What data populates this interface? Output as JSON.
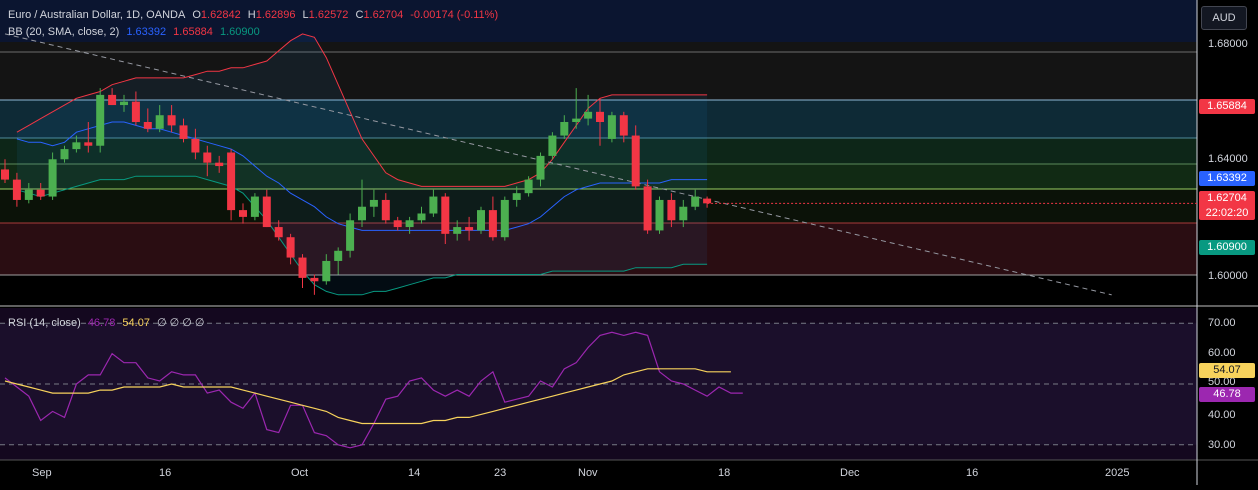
{
  "symbol_legend": {
    "title": "Euro / Australian Dollar, 1D, OANDA",
    "open_label": "O",
    "open": "1.62842",
    "high_label": "H",
    "high": "1.62896",
    "low_label": "L",
    "low": "1.62572",
    "close_label": "C",
    "close": "1.62704",
    "change": "-0.00174 (-0.11%)"
  },
  "bb_legend": {
    "label": "BB (20, SMA, close, 2)",
    "basis": "1.63392",
    "upper": "1.65884",
    "lower": "1.60900"
  },
  "rsi_legend": {
    "label": "RSI (14, close)",
    "rsi": "46.78",
    "ma": "54.07",
    "extras": "∅ ∅ ∅ ∅"
  },
  "currency_button": "AUD",
  "price_axis_labels": [
    "1.68000",
    "1.64000",
    "1.60000"
  ],
  "price_badges": {
    "upper": "1.65884",
    "basis": "1.63392",
    "close": "1.62704",
    "countdown": "22:02:20",
    "lower": "1.60900"
  },
  "rsi_axis_labels": [
    "70.00",
    "60.00",
    "50.00",
    "40.00",
    "30.00"
  ],
  "rsi_badges": {
    "ma": "54.07",
    "rsi": "46.78"
  },
  "time_axis_labels": [
    "Sep",
    "16",
    "Oct",
    "14",
    "23",
    "Nov",
    "18",
    "Dec",
    "16",
    "2025"
  ],
  "colors": {
    "up": "#4caf50",
    "down": "#f23645",
    "bb_basis": "#2962ff",
    "bb_upper": "#f23645",
    "bb_lower": "#089981",
    "rsi": "#9c27b0",
    "rsi_ma": "#f7d25c"
  },
  "chart_data": {
    "type": "candlestick",
    "price_range": [
      1.597,
      1.687
    ],
    "candles": [
      {
        "o": 1.637,
        "h": 1.64,
        "l": 1.633,
        "c": 1.634
      },
      {
        "o": 1.634,
        "h": 1.636,
        "l": 1.626,
        "c": 1.628
      },
      {
        "o": 1.628,
        "h": 1.633,
        "l": 1.627,
        "c": 1.631
      },
      {
        "o": 1.631,
        "h": 1.633,
        "l": 1.628,
        "c": 1.629
      },
      {
        "o": 1.629,
        "h": 1.642,
        "l": 1.628,
        "c": 1.64
      },
      {
        "o": 1.64,
        "h": 1.644,
        "l": 1.639,
        "c": 1.643
      },
      {
        "o": 1.643,
        "h": 1.647,
        "l": 1.642,
        "c": 1.645
      },
      {
        "o": 1.645,
        "h": 1.651,
        "l": 1.642,
        "c": 1.644
      },
      {
        "o": 1.644,
        "h": 1.661,
        "l": 1.642,
        "c": 1.659
      },
      {
        "o": 1.659,
        "h": 1.661,
        "l": 1.656,
        "c": 1.656
      },
      {
        "o": 1.656,
        "h": 1.659,
        "l": 1.654,
        "c": 1.657
      },
      {
        "o": 1.657,
        "h": 1.66,
        "l": 1.65,
        "c": 1.651
      },
      {
        "o": 1.651,
        "h": 1.655,
        "l": 1.648,
        "c": 1.649
      },
      {
        "o": 1.649,
        "h": 1.656,
        "l": 1.648,
        "c": 1.653
      },
      {
        "o": 1.653,
        "h": 1.656,
        "l": 1.648,
        "c": 1.65
      },
      {
        "o": 1.65,
        "h": 1.652,
        "l": 1.645,
        "c": 1.646
      },
      {
        "o": 1.646,
        "h": 1.649,
        "l": 1.64,
        "c": 1.642
      },
      {
        "o": 1.642,
        "h": 1.644,
        "l": 1.635,
        "c": 1.639
      },
      {
        "o": 1.639,
        "h": 1.641,
        "l": 1.636,
        "c": 1.638
      },
      {
        "o": 1.642,
        "h": 1.643,
        "l": 1.622,
        "c": 1.625
      },
      {
        "o": 1.625,
        "h": 1.627,
        "l": 1.621,
        "c": 1.623
      },
      {
        "o": 1.623,
        "h": 1.63,
        "l": 1.622,
        "c": 1.629
      },
      {
        "o": 1.629,
        "h": 1.631,
        "l": 1.62,
        "c": 1.62
      },
      {
        "o": 1.62,
        "h": 1.622,
        "l": 1.616,
        "c": 1.617
      },
      {
        "o": 1.617,
        "h": 1.618,
        "l": 1.609,
        "c": 1.611
      },
      {
        "o": 1.611,
        "h": 1.612,
        "l": 1.602,
        "c": 1.605
      },
      {
        "o": 1.605,
        "h": 1.606,
        "l": 1.6,
        "c": 1.604
      },
      {
        "o": 1.604,
        "h": 1.612,
        "l": 1.603,
        "c": 1.61
      },
      {
        "o": 1.61,
        "h": 1.614,
        "l": 1.606,
        "c": 1.613
      },
      {
        "o": 1.613,
        "h": 1.624,
        "l": 1.611,
        "c": 1.622
      },
      {
        "o": 1.622,
        "h": 1.634,
        "l": 1.62,
        "c": 1.626
      },
      {
        "o": 1.626,
        "h": 1.631,
        "l": 1.623,
        "c": 1.628
      },
      {
        "o": 1.628,
        "h": 1.63,
        "l": 1.621,
        "c": 1.622
      },
      {
        "o": 1.622,
        "h": 1.623,
        "l": 1.619,
        "c": 1.62
      },
      {
        "o": 1.62,
        "h": 1.623,
        "l": 1.618,
        "c": 1.622
      },
      {
        "o": 1.622,
        "h": 1.626,
        "l": 1.621,
        "c": 1.624
      },
      {
        "o": 1.624,
        "h": 1.631,
        "l": 1.623,
        "c": 1.629
      },
      {
        "o": 1.629,
        "h": 1.63,
        "l": 1.615,
        "c": 1.618
      },
      {
        "o": 1.618,
        "h": 1.622,
        "l": 1.616,
        "c": 1.62
      },
      {
        "o": 1.62,
        "h": 1.623,
        "l": 1.616,
        "c": 1.619
      },
      {
        "o": 1.619,
        "h": 1.626,
        "l": 1.618,
        "c": 1.625
      },
      {
        "o": 1.625,
        "h": 1.629,
        "l": 1.616,
        "c": 1.617
      },
      {
        "o": 1.617,
        "h": 1.629,
        "l": 1.616,
        "c": 1.628
      },
      {
        "o": 1.628,
        "h": 1.632,
        "l": 1.626,
        "c": 1.63
      },
      {
        "o": 1.63,
        "h": 1.635,
        "l": 1.629,
        "c": 1.634
      },
      {
        "o": 1.634,
        "h": 1.642,
        "l": 1.632,
        "c": 1.641
      },
      {
        "o": 1.641,
        "h": 1.648,
        "l": 1.64,
        "c": 1.647
      },
      {
        "o": 1.647,
        "h": 1.653,
        "l": 1.646,
        "c": 1.651
      },
      {
        "o": 1.651,
        "h": 1.661,
        "l": 1.649,
        "c": 1.652
      },
      {
        "o": 1.652,
        "h": 1.659,
        "l": 1.65,
        "c": 1.654
      },
      {
        "o": 1.654,
        "h": 1.658,
        "l": 1.644,
        "c": 1.651
      },
      {
        "o": 1.646,
        "h": 1.654,
        "l": 1.645,
        "c": 1.653
      },
      {
        "o": 1.653,
        "h": 1.654,
        "l": 1.645,
        "c": 1.647
      },
      {
        "o": 1.647,
        "h": 1.65,
        "l": 1.631,
        "c": 1.632
      },
      {
        "o": 1.632,
        "h": 1.634,
        "l": 1.618,
        "c": 1.619
      },
      {
        "o": 1.619,
        "h": 1.629,
        "l": 1.618,
        "c": 1.628
      },
      {
        "o": 1.628,
        "h": 1.63,
        "l": 1.62,
        "c": 1.622
      },
      {
        "o": 1.622,
        "h": 1.628,
        "l": 1.62,
        "c": 1.626
      },
      {
        "o": 1.626,
        "h": 1.631,
        "l": 1.625,
        "c": 1.629
      },
      {
        "o": 1.6284,
        "h": 1.629,
        "l": 1.6257,
        "c": 1.627
      }
    ],
    "bollinger": {
      "upper": [
        1.648,
        1.65,
        1.652,
        1.654,
        1.656,
        1.658,
        1.659,
        1.66,
        1.662,
        1.663,
        1.664,
        1.664,
        1.664,
        1.664,
        1.664,
        1.665,
        1.666,
        1.666,
        1.667,
        1.667,
        1.668,
        1.669,
        1.672,
        1.675,
        1.677,
        1.676,
        1.67,
        1.662,
        1.654,
        1.646,
        1.641,
        1.636,
        1.634,
        1.633,
        1.632,
        1.632,
        1.632,
        1.632,
        1.632,
        1.632,
        1.632,
        1.632,
        1.633,
        1.634,
        1.636,
        1.64,
        1.645,
        1.65,
        1.655,
        1.658,
        1.659,
        1.659,
        1.659,
        1.659,
        1.659,
        1.659,
        1.659,
        1.659,
        1.659
      ],
      "basis": [
        1.646,
        1.645,
        1.645,
        1.644,
        1.645,
        1.648,
        1.649,
        1.65,
        1.651,
        1.651,
        1.65,
        1.649,
        1.649,
        1.648,
        1.647,
        1.646,
        1.645,
        1.644,
        1.643,
        1.641,
        1.638,
        1.635,
        1.633,
        1.63,
        1.628,
        1.626,
        1.623,
        1.621,
        1.62,
        1.619,
        1.619,
        1.619,
        1.619,
        1.619,
        1.619,
        1.619,
        1.619,
        1.619,
        1.619,
        1.619,
        1.619,
        1.619,
        1.62,
        1.621,
        1.623,
        1.626,
        1.629,
        1.631,
        1.632,
        1.633,
        1.633,
        1.633,
        1.633,
        1.633,
        1.633,
        1.634,
        1.634,
        1.634,
        1.634
      ],
      "lower": [
        1.631,
        1.63,
        1.629,
        1.63,
        1.631,
        1.632,
        1.633,
        1.634,
        1.634,
        1.634,
        1.635,
        1.635,
        1.635,
        1.635,
        1.635,
        1.635,
        1.634,
        1.633,
        1.632,
        1.63,
        1.626,
        1.622,
        1.617,
        1.612,
        1.607,
        1.603,
        1.601,
        1.6,
        1.6,
        1.6,
        1.601,
        1.601,
        1.602,
        1.603,
        1.604,
        1.605,
        1.605,
        1.606,
        1.606,
        1.606,
        1.606,
        1.606,
        1.606,
        1.606,
        1.606,
        1.607,
        1.607,
        1.607,
        1.607,
        1.607,
        1.607,
        1.607,
        1.608,
        1.608,
        1.608,
        1.608,
        1.609,
        1.609,
        1.609
      ]
    },
    "bb_first_index": 1,
    "trendline": {
      "start": [
        0,
        1.677
      ],
      "end": [
        93,
        1.6
      ]
    },
    "rsi_range": [
      25,
      75
    ],
    "rsi": [
      52,
      49,
      46,
      38,
      41,
      39,
      50,
      53,
      53,
      60,
      57,
      57,
      52,
      51,
      54,
      53,
      53,
      47,
      48,
      44,
      42,
      47,
      35,
      34,
      43,
      43,
      34,
      33,
      30,
      29,
      30,
      37,
      45,
      46,
      51,
      52,
      48,
      46,
      48,
      46,
      51,
      54,
      44,
      45,
      46,
      51,
      49,
      55,
      57,
      62,
      66,
      67,
      66,
      67,
      66,
      54,
      51,
      50,
      48,
      46,
      49,
      47,
      47
    ],
    "rsi_ma": [
      51,
      50,
      49,
      48,
      47,
      47,
      47,
      47,
      48,
      48,
      49,
      49,
      49,
      49,
      50,
      49,
      49,
      49,
      49,
      49,
      48,
      47,
      46,
      45,
      44,
      43,
      42,
      41,
      39,
      38,
      37,
      37,
      37,
      37,
      37,
      37,
      38,
      38,
      39,
      39,
      40,
      41,
      42,
      43,
      44,
      45,
      46,
      47,
      48,
      49,
      50,
      51,
      53,
      54,
      55,
      55,
      55,
      55,
      55,
      54,
      54,
      54
    ]
  }
}
